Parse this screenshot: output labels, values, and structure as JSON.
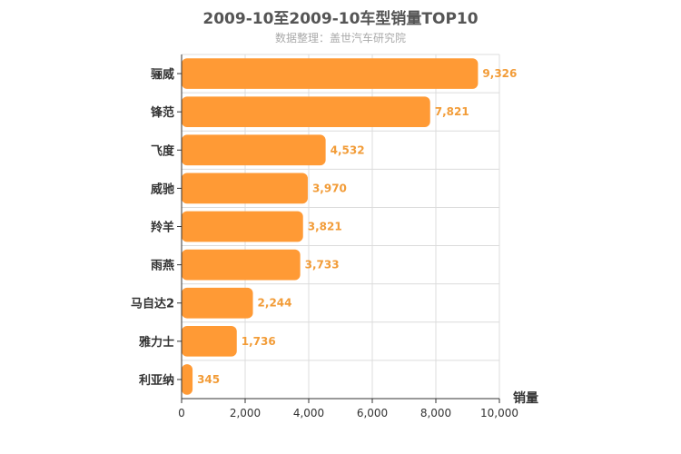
{
  "chart_data": {
    "type": "bar",
    "orientation": "horizontal",
    "title": "2009-10至2009-10车型销量TOP10",
    "subtitle": "数据整理：盖世汽车研究院",
    "categories": [
      "骊威",
      "锋范",
      "飞度",
      "威驰",
      "羚羊",
      "雨燕",
      "马自达2",
      "雅力士",
      "利亚纳"
    ],
    "values": [
      9326,
      7821,
      4532,
      3970,
      3821,
      3733,
      2244,
      1736,
      345
    ],
    "value_labels": [
      "9,326",
      "7,821",
      "4,532",
      "3,970",
      "3,821",
      "3,733",
      "2,244",
      "1,736",
      "345"
    ],
    "xlim": [
      0,
      10000
    ],
    "xticks": [
      0,
      2000,
      4000,
      6000,
      8000,
      10000
    ],
    "xtick_labels": [
      "0",
      "2,000",
      "4,000",
      "6,000",
      "8,000",
      "10,000"
    ],
    "value_axis_label": "销量",
    "bar_color": "#ff9a35",
    "label_color": "#f29c38",
    "grid": true
  }
}
